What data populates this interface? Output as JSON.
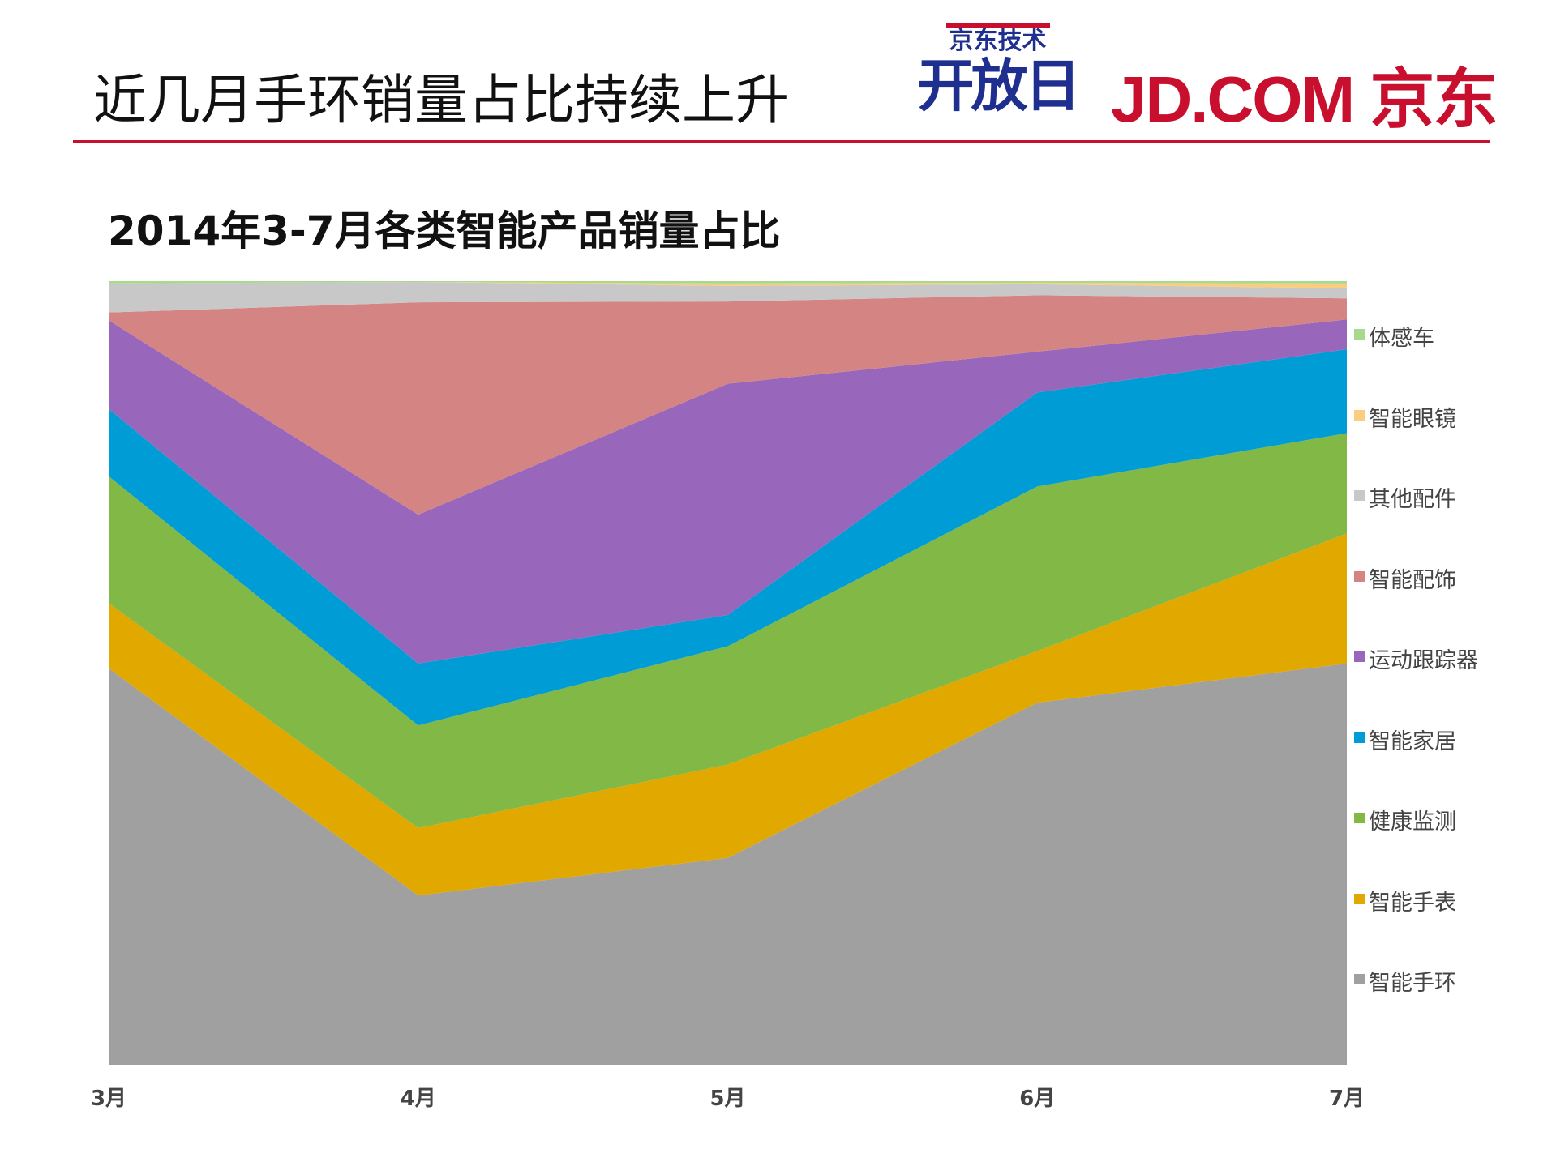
{
  "header": {
    "title": "近几月手环销量占比持续上升",
    "logo_event_small": "京东技术",
    "logo_event_big": "开放日",
    "logo_brand": "JD.COM 京东"
  },
  "chart_data": {
    "type": "area",
    "stacked": "percent",
    "title": "2014年3-7月各类智能产品销量占比",
    "xlabel": "",
    "ylabel": "",
    "ylim": [
      0,
      100
    ],
    "grid": false,
    "legend_position": "right",
    "categories": [
      "3月",
      "4月",
      "5月",
      "6月",
      "7月"
    ],
    "series": [
      {
        "name": "智能手环",
        "color": "#a0a0a0",
        "values": [
          50.6,
          21.6,
          26.4,
          46.2,
          51.2
        ]
      },
      {
        "name": "智能手表",
        "color": "#e1a800",
        "values": [
          8.3,
          8.6,
          11.9,
          6.6,
          16.6
        ]
      },
      {
        "name": "健康监测",
        "color": "#82b846",
        "values": [
          16.2,
          13.1,
          15.1,
          21.0,
          12.8
        ]
      },
      {
        "name": "智能家居",
        "color": "#009cd6",
        "values": [
          8.6,
          7.9,
          4.0,
          12.0,
          10.7
        ]
      },
      {
        "name": "运动跟踪器",
        "color": "#9866ba",
        "values": [
          11.3,
          19.0,
          29.5,
          5.2,
          3.8
        ]
      },
      {
        "name": "智能配饰",
        "color": "#d58484",
        "values": [
          1.0,
          27.1,
          10.5,
          7.2,
          2.7
        ]
      },
      {
        "name": "其他配件",
        "color": "#c8c8c8",
        "values": [
          3.7,
          2.6,
          2.0,
          1.4,
          1.3
        ]
      },
      {
        "name": "智能眼镜",
        "color": "#fbcd7f",
        "values": [
          0.0,
          0.0,
          0.3,
          0.2,
          0.6
        ]
      },
      {
        "name": "体感车",
        "color": "#a9d98c",
        "values": [
          0.3,
          0.1,
          0.3,
          0.2,
          0.3
        ]
      }
    ]
  }
}
